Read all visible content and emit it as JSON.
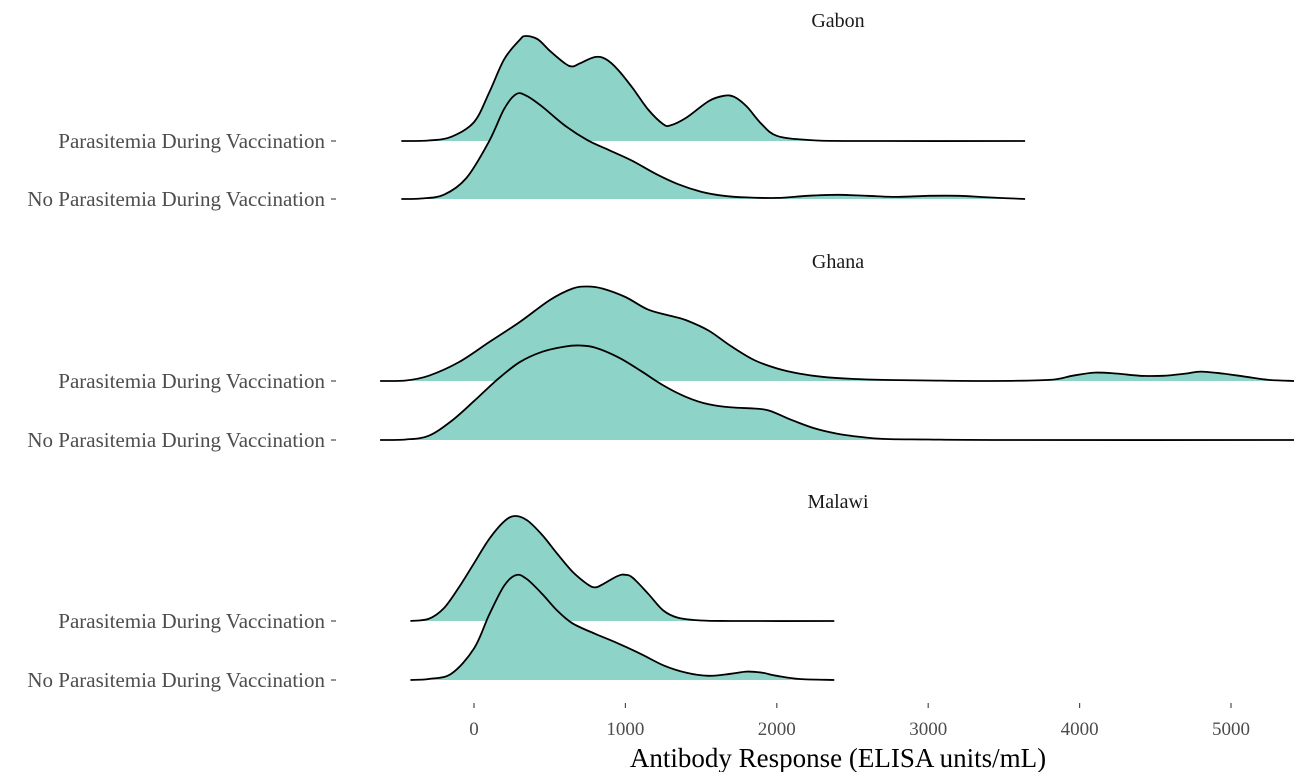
{
  "chart_data": {
    "type": "area",
    "subtype": "ridgeline",
    "xlabel": "Antibody Response (ELISA units/mL)",
    "x_ticks": [
      0,
      1000,
      2000,
      3000,
      4000,
      5000
    ],
    "xlim": [
      -620,
      5420
    ],
    "fill_color": "#8dd3c7",
    "line_color": "#000000",
    "grid": false,
    "legend": "none",
    "panels": [
      {
        "title": "Gabon",
        "series": [
          {
            "name": "Parasitemia During Vaccination",
            "range": [
              -480,
              3640
            ],
            "density": [
              [
                -480,
                0
              ],
              [
                -300,
                0.005
              ],
              [
                -150,
                0.04
              ],
              [
                0,
                0.18
              ],
              [
                100,
                0.46
              ],
              [
                200,
                0.78
              ],
              [
                300,
                0.96
              ],
              [
                340,
                1
              ],
              [
                420,
                0.97
              ],
              [
                500,
                0.86
              ],
              [
                600,
                0.74
              ],
              [
                650,
                0.71
              ],
              [
                700,
                0.74
              ],
              [
                800,
                0.8
              ],
              [
                870,
                0.78
              ],
              [
                950,
                0.68
              ],
              [
                1050,
                0.5
              ],
              [
                1150,
                0.3
              ],
              [
                1250,
                0.16
              ],
              [
                1300,
                0.15
              ],
              [
                1400,
                0.22
              ],
              [
                1550,
                0.38
              ],
              [
                1650,
                0.43
              ],
              [
                1720,
                0.42
              ],
              [
                1800,
                0.33
              ],
              [
                1900,
                0.16
              ],
              [
                2000,
                0.05
              ],
              [
                2200,
                0.01
              ],
              [
                2500,
                0
              ],
              [
                3640,
                0
              ]
            ]
          },
          {
            "name": "No Parasitemia During Vaccination",
            "range": [
              -480,
              3640
            ],
            "density": [
              [
                -480,
                0
              ],
              [
                -350,
                0.005
              ],
              [
                -200,
                0.04
              ],
              [
                -50,
                0.2
              ],
              [
                100,
                0.55
              ],
              [
                200,
                0.86
              ],
              [
                280,
                1
              ],
              [
                350,
                0.98
              ],
              [
                450,
                0.88
              ],
              [
                600,
                0.7
              ],
              [
                750,
                0.56
              ],
              [
                900,
                0.46
              ],
              [
                1050,
                0.36
              ],
              [
                1200,
                0.24
              ],
              [
                1350,
                0.14
              ],
              [
                1500,
                0.07
              ],
              [
                1650,
                0.03
              ],
              [
                1800,
                0.015
              ],
              [
                2000,
                0.01
              ],
              [
                2200,
                0.03
              ],
              [
                2400,
                0.04
              ],
              [
                2600,
                0.03
              ],
              [
                2800,
                0.02
              ],
              [
                3000,
                0.03
              ],
              [
                3200,
                0.03
              ],
              [
                3400,
                0.015
              ],
              [
                3640,
                0
              ]
            ]
          }
        ]
      },
      {
        "title": "Ghana",
        "series": [
          {
            "name": "Parasitemia During Vaccination",
            "range": [
              -620,
              5420
            ],
            "density": [
              [
                -620,
                0
              ],
              [
                -450,
                0.005
              ],
              [
                -300,
                0.05
              ],
              [
                -100,
                0.18
              ],
              [
                100,
                0.37
              ],
              [
                300,
                0.56
              ],
              [
                500,
                0.77
              ],
              [
                650,
                0.88
              ],
              [
                750,
                0.9
              ],
              [
                850,
                0.88
              ],
              [
                1000,
                0.8
              ],
              [
                1150,
                0.68
              ],
              [
                1300,
                0.62
              ],
              [
                1400,
                0.58
              ],
              [
                1550,
                0.48
              ],
              [
                1700,
                0.33
              ],
              [
                1850,
                0.2
              ],
              [
                2000,
                0.12
              ],
              [
                2150,
                0.07
              ],
              [
                2300,
                0.04
              ],
              [
                2500,
                0.02
              ],
              [
                2700,
                0.01
              ],
              [
                3000,
                0.005
              ],
              [
                3400,
                0
              ],
              [
                3800,
                0.01
              ],
              [
                3950,
                0.05
              ],
              [
                4100,
                0.08
              ],
              [
                4250,
                0.07
              ],
              [
                4400,
                0.05
              ],
              [
                4550,
                0.05
              ],
              [
                4700,
                0.07
              ],
              [
                4800,
                0.09
              ],
              [
                4950,
                0.07
              ],
              [
                5100,
                0.04
              ],
              [
                5250,
                0.01
              ],
              [
                5420,
                0
              ]
            ]
          },
          {
            "name": "No Parasitemia During Vaccination",
            "range": [
              -620,
              5420
            ],
            "density": [
              [
                -620,
                0
              ],
              [
                -450,
                0.005
              ],
              [
                -300,
                0.04
              ],
              [
                -150,
                0.18
              ],
              [
                0,
                0.37
              ],
              [
                150,
                0.57
              ],
              [
                300,
                0.74
              ],
              [
                450,
                0.84
              ],
              [
                600,
                0.89
              ],
              [
                700,
                0.9
              ],
              [
                800,
                0.88
              ],
              [
                950,
                0.79
              ],
              [
                1100,
                0.66
              ],
              [
                1250,
                0.52
              ],
              [
                1400,
                0.41
              ],
              [
                1550,
                0.34
              ],
              [
                1700,
                0.31
              ],
              [
                1850,
                0.3
              ],
              [
                1950,
                0.28
              ],
              [
                2100,
                0.19
              ],
              [
                2250,
                0.11
              ],
              [
                2400,
                0.06
              ],
              [
                2550,
                0.03
              ],
              [
                2700,
                0.01
              ],
              [
                3000,
                0.005
              ],
              [
                3500,
                0
              ],
              [
                5420,
                0
              ]
            ]
          }
        ]
      },
      {
        "title": "Malawi",
        "series": [
          {
            "name": "Parasitemia During Vaccination",
            "range": [
              -420,
              2380
            ],
            "density": [
              [
                -420,
                0
              ],
              [
                -300,
                0.02
              ],
              [
                -200,
                0.12
              ],
              [
                -100,
                0.32
              ],
              [
                0,
                0.55
              ],
              [
                100,
                0.78
              ],
              [
                200,
                0.95
              ],
              [
                270,
                1
              ],
              [
                350,
                0.96
              ],
              [
                450,
                0.82
              ],
              [
                550,
                0.64
              ],
              [
                650,
                0.47
              ],
              [
                750,
                0.35
              ],
              [
                800,
                0.32
              ],
              [
                850,
                0.35
              ],
              [
                950,
                0.43
              ],
              [
                1000,
                0.44
              ],
              [
                1050,
                0.41
              ],
              [
                1150,
                0.26
              ],
              [
                1250,
                0.1
              ],
              [
                1350,
                0.03
              ],
              [
                1500,
                0.005
              ],
              [
                1700,
                0
              ],
              [
                2380,
                0
              ]
            ]
          },
          {
            "name": "No Parasitemia During Vaccination",
            "range": [
              -420,
              2380
            ],
            "density": [
              [
                -420,
                0
              ],
              [
                -300,
                0.01
              ],
              [
                -150,
                0.06
              ],
              [
                0,
                0.3
              ],
              [
                100,
                0.62
              ],
              [
                200,
                0.9
              ],
              [
                280,
                1
              ],
              [
                350,
                0.96
              ],
              [
                450,
                0.82
              ],
              [
                550,
                0.66
              ],
              [
                650,
                0.54
              ],
              [
                800,
                0.44
              ],
              [
                950,
                0.35
              ],
              [
                1100,
                0.25
              ],
              [
                1250,
                0.14
              ],
              [
                1400,
                0.07
              ],
              [
                1550,
                0.04
              ],
              [
                1700,
                0.06
              ],
              [
                1800,
                0.08
              ],
              [
                1900,
                0.07
              ],
              [
                2000,
                0.04
              ],
              [
                2150,
                0.01
              ],
              [
                2380,
                0
              ]
            ]
          }
        ]
      }
    ]
  }
}
